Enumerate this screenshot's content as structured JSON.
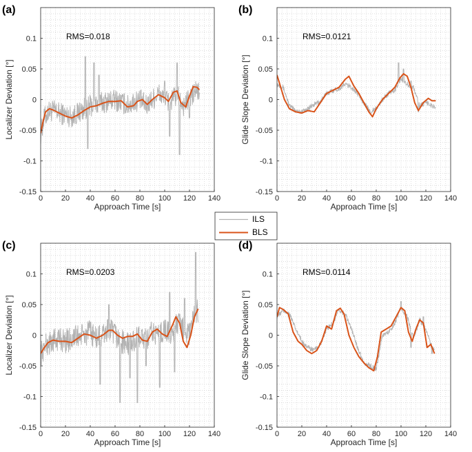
{
  "colors": {
    "ils": "#b3b3b3",
    "bls": "#d95319",
    "axis": "#262626",
    "grid": "#c8c8c8"
  },
  "legend": {
    "entries": [
      "ILS",
      "BLS"
    ],
    "placement": "center-middle"
  },
  "chart_data": [
    {
      "panel": "(a)",
      "type": "line",
      "annotation": "RMS=0.018",
      "xlabel": "Approach Time [s]",
      "ylabel": "Localizer Deviation [°]",
      "xlim": [
        0,
        140
      ],
      "ylim": [
        -0.15,
        0.15
      ],
      "grid": "minor dotted",
      "xticks": [
        0,
        20,
        40,
        60,
        80,
        100,
        120,
        140
      ],
      "yticks": [
        -0.15,
        -0.1,
        -0.05,
        0,
        0.05,
        0.1
      ],
      "series": [
        {
          "name": "ILS",
          "noise": 0.018,
          "spikes": [
            [
              36,
              0.07
            ],
            [
              38,
              -0.08
            ],
            [
              43,
              0.06
            ],
            [
              47,
              0.04
            ],
            [
              100,
              0.03
            ],
            [
              104,
              -0.06
            ],
            [
              110,
              0.06
            ],
            [
              112,
              -0.09
            ],
            [
              120,
              -0.03
            ]
          ],
          "x": [
            0,
            3,
            6,
            10,
            15,
            20,
            25,
            30,
            35,
            40,
            45,
            50,
            55,
            60,
            65,
            70,
            75,
            80,
            85,
            90,
            95,
            100,
            105,
            110,
            115,
            120,
            125,
            128
          ],
          "y": [
            -0.055,
            -0.03,
            -0.02,
            -0.018,
            -0.022,
            -0.025,
            -0.028,
            -0.022,
            -0.015,
            -0.01,
            -0.008,
            -0.005,
            -0.002,
            -0.001,
            -0.004,
            -0.01,
            -0.004,
            0.0,
            -0.01,
            0.0,
            0.01,
            0.0,
            -0.005,
            0.01,
            -0.01,
            0.0,
            0.015,
            0.012
          ]
        },
        {
          "name": "BLS",
          "x": [
            0,
            2,
            4,
            7,
            10,
            15,
            20,
            25,
            30,
            35,
            40,
            45,
            50,
            55,
            60,
            65,
            70,
            75,
            78,
            82,
            86,
            90,
            95,
            100,
            103,
            107,
            110,
            113,
            117,
            120,
            123,
            126,
            128
          ],
          "y": [
            -0.055,
            -0.035,
            -0.02,
            -0.015,
            -0.017,
            -0.022,
            -0.027,
            -0.03,
            -0.025,
            -0.018,
            -0.012,
            -0.01,
            -0.006,
            -0.003,
            -0.003,
            -0.002,
            -0.012,
            -0.01,
            -0.003,
            0.0,
            -0.008,
            0.0,
            0.008,
            0.003,
            -0.003,
            0.012,
            0.014,
            -0.005,
            -0.012,
            0.006,
            0.021,
            0.02,
            0.016
          ]
        }
      ]
    },
    {
      "panel": "(b)",
      "type": "line",
      "annotation": "RMS=0.0121",
      "xlabel": "Approach Time [s]",
      "ylabel": "Glide Slope Deviation [°]",
      "xlim": [
        0,
        140
      ],
      "ylim": [
        -0.15,
        0.15
      ],
      "grid": "minor dotted",
      "xticks": [
        0,
        20,
        40,
        60,
        80,
        100,
        120,
        140
      ],
      "yticks": [
        -0.15,
        -0.1,
        -0.05,
        0,
        0.05,
        0.1
      ],
      "series": [
        {
          "name": "ILS",
          "noise": 0.004,
          "spikes": [
            [
              98,
              0.06
            ],
            [
              102,
              0.05
            ],
            [
              108,
              0.03
            ],
            [
              114,
              -0.02
            ]
          ],
          "x": [
            0,
            5,
            10,
            15,
            20,
            25,
            30,
            35,
            40,
            45,
            50,
            55,
            60,
            65,
            70,
            75,
            80,
            85,
            90,
            95,
            100,
            105,
            110,
            115,
            120,
            125,
            128
          ],
          "y": [
            0.025,
            0.02,
            -0.01,
            -0.018,
            -0.02,
            -0.015,
            -0.008,
            -0.003,
            0.01,
            0.015,
            0.018,
            0.025,
            0.02,
            0.01,
            -0.005,
            -0.02,
            -0.015,
            0.0,
            0.01,
            0.015,
            0.035,
            0.025,
            0.02,
            -0.01,
            -0.005,
            -0.01,
            -0.012
          ]
        },
        {
          "name": "BLS",
          "x": [
            0,
            3,
            6,
            10,
            15,
            20,
            25,
            30,
            35,
            40,
            45,
            50,
            55,
            58,
            62,
            66,
            70,
            74,
            77,
            80,
            85,
            90,
            95,
            99,
            102,
            105,
            108,
            111,
            114,
            118,
            122,
            125,
            128
          ],
          "y": [
            0.04,
            0.02,
            0.0,
            -0.015,
            -0.02,
            -0.022,
            -0.018,
            -0.02,
            -0.005,
            0.01,
            0.015,
            0.02,
            0.033,
            0.038,
            0.022,
            0.01,
            -0.005,
            -0.02,
            -0.028,
            -0.015,
            0.0,
            0.01,
            0.02,
            0.035,
            0.042,
            0.038,
            0.02,
            -0.005,
            -0.018,
            -0.005,
            0.002,
            -0.002,
            -0.002
          ]
        }
      ]
    },
    {
      "panel": "(c)",
      "type": "line",
      "annotation": "RMS=0.0203",
      "xlabel": "Approach Time [s]",
      "ylabel": "Localizer Deviation [°]",
      "xlim": [
        0,
        140
      ],
      "ylim": [
        -0.15,
        0.15
      ],
      "grid": "minor dotted",
      "xticks": [
        0,
        20,
        40,
        60,
        80,
        100,
        120,
        140
      ],
      "yticks": [
        -0.15,
        -0.1,
        -0.05,
        0,
        0.05,
        0.1
      ],
      "series": [
        {
          "name": "ILS",
          "noise": 0.02,
          "spikes": [
            [
              48,
              -0.08
            ],
            [
              55,
              0.05
            ],
            [
              64,
              -0.11
            ],
            [
              72,
              -0.07
            ],
            [
              78,
              -0.11
            ],
            [
              85,
              -0.05
            ],
            [
              96,
              -0.085
            ],
            [
              104,
              0.07
            ],
            [
              108,
              -0.06
            ],
            [
              116,
              0.06
            ],
            [
              125,
              0.135
            ]
          ],
          "x": [
            0,
            5,
            10,
            15,
            20,
            25,
            30,
            35,
            40,
            45,
            50,
            55,
            60,
            65,
            70,
            75,
            80,
            85,
            90,
            95,
            100,
            105,
            110,
            115,
            120,
            125,
            127
          ],
          "y": [
            -0.03,
            -0.015,
            -0.01,
            -0.005,
            -0.01,
            -0.005,
            -0.002,
            0.0,
            0.005,
            -0.005,
            0.0,
            0.01,
            0.0,
            -0.01,
            -0.015,
            -0.01,
            0.0,
            -0.01,
            0.005,
            0.0,
            0.01,
            0.0,
            0.02,
            0.01,
            0.0,
            0.04,
            0.04
          ]
        },
        {
          "name": "BLS",
          "x": [
            0,
            3,
            6,
            10,
            15,
            20,
            25,
            30,
            35,
            40,
            45,
            50,
            55,
            58,
            62,
            66,
            70,
            74,
            78,
            82,
            86,
            90,
            94,
            98,
            102,
            106,
            109,
            112,
            115,
            118,
            121,
            124,
            127
          ],
          "y": [
            -0.03,
            -0.02,
            -0.012,
            -0.008,
            -0.01,
            -0.01,
            -0.012,
            -0.005,
            0.002,
            0.0,
            -0.005,
            0.0,
            0.008,
            0.008,
            0.0,
            -0.005,
            -0.002,
            -0.002,
            0.002,
            -0.008,
            -0.01,
            0.005,
            0.01,
            0.002,
            -0.002,
            0.015,
            0.03,
            0.02,
            -0.01,
            -0.02,
            0.0,
            0.03,
            0.043
          ]
        }
      ]
    },
    {
      "panel": "(d)",
      "type": "line",
      "annotation": "RMS=0.0114",
      "xlabel": "Approach Time [s]",
      "ylabel": "Glide Slope Deviation [°]",
      "xlim": [
        0,
        140
      ],
      "ylim": [
        -0.15,
        0.15
      ],
      "grid": "minor dotted",
      "xticks": [
        0,
        20,
        40,
        60,
        80,
        100,
        120,
        140
      ],
      "yticks": [
        -0.15,
        -0.1,
        -0.05,
        0,
        0.05,
        0.1
      ],
      "series": [
        {
          "name": "ILS",
          "noise": 0.004,
          "spikes": [
            [
              100,
              0.055
            ],
            [
              108,
              -0.02
            ],
            [
              118,
              0.03
            ],
            [
              125,
              -0.03
            ]
          ],
          "x": [
            0,
            5,
            10,
            15,
            20,
            25,
            30,
            35,
            40,
            45,
            50,
            55,
            60,
            65,
            70,
            75,
            80,
            85,
            90,
            95,
            100,
            105,
            110,
            115,
            120,
            125,
            127
          ],
          "y": [
            0.03,
            0.04,
            0.035,
            0.01,
            -0.01,
            -0.02,
            -0.025,
            -0.015,
            0.01,
            0.02,
            0.04,
            0.035,
            0.01,
            -0.02,
            -0.045,
            -0.05,
            -0.055,
            0.0,
            0.005,
            0.02,
            0.045,
            0.03,
            -0.005,
            0.025,
            0.01,
            -0.02,
            -0.025
          ]
        },
        {
          "name": "BLS",
          "x": [
            0,
            2,
            5,
            9,
            13,
            17,
            20,
            24,
            28,
            32,
            36,
            40,
            44,
            48,
            51,
            54,
            58,
            62,
            66,
            70,
            74,
            78,
            81,
            84,
            88,
            92,
            96,
            100,
            103,
            106,
            109,
            112,
            115,
            118,
            121,
            124,
            127
          ],
          "y": [
            0.03,
            0.045,
            0.042,
            0.035,
            0.005,
            -0.01,
            -0.015,
            -0.025,
            -0.03,
            -0.025,
            -0.01,
            0.015,
            0.01,
            0.04,
            0.044,
            0.035,
            0.0,
            -0.02,
            -0.035,
            -0.045,
            -0.053,
            -0.058,
            -0.035,
            0.005,
            0.01,
            0.015,
            0.03,
            0.045,
            0.04,
            0.005,
            -0.01,
            0.01,
            0.025,
            0.02,
            -0.02,
            -0.015,
            -0.03
          ]
        }
      ]
    }
  ]
}
